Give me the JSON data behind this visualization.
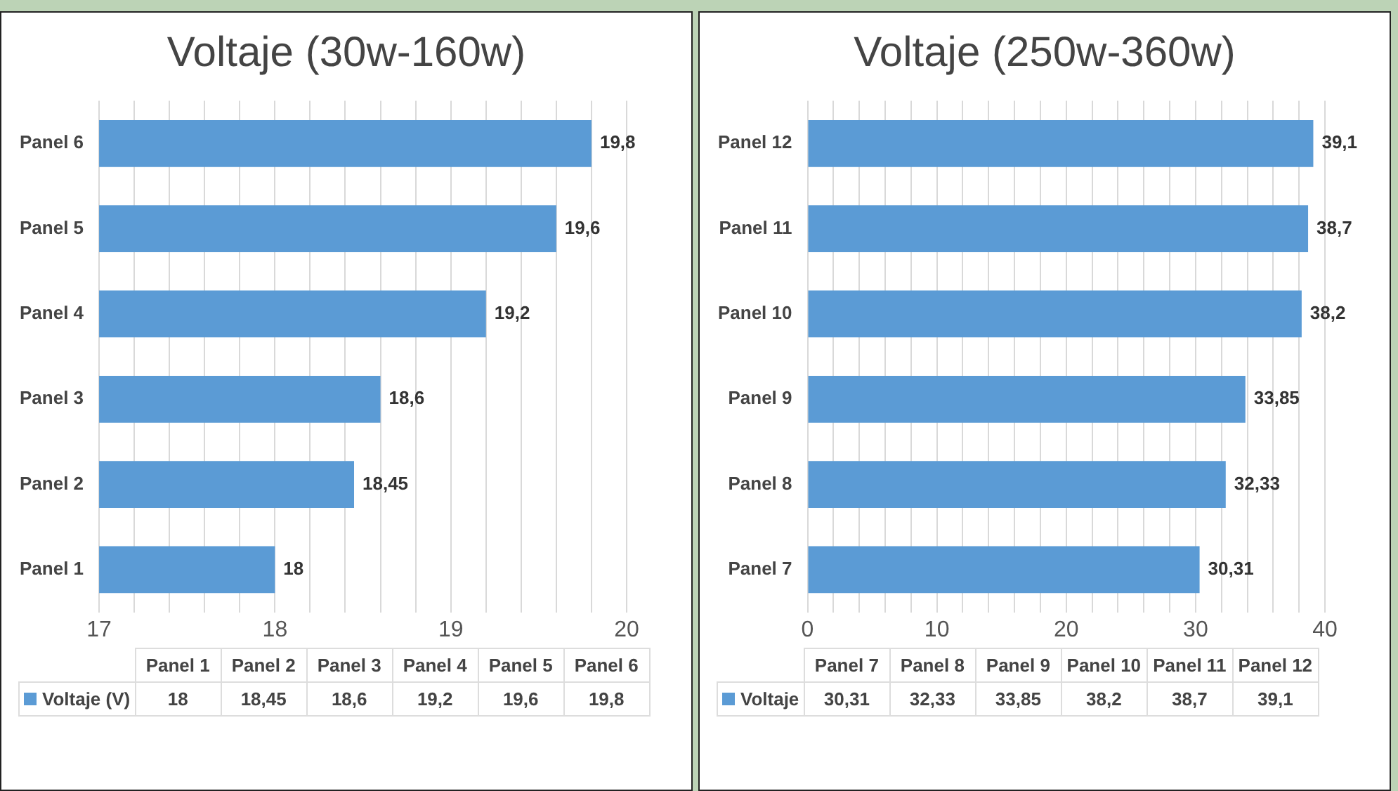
{
  "chart_data": [
    {
      "type": "bar",
      "orientation": "horizontal",
      "title": "Voltaje (30w-160w)",
      "categories": [
        "Panel 6",
        "Panel 5",
        "Panel 4",
        "Panel 3",
        "Panel 2",
        "Panel 1"
      ],
      "series": [
        {
          "name": "Voltaje (V)",
          "color": "#5b9bd5",
          "values": [
            19.8,
            19.6,
            19.2,
            18.6,
            18.45,
            18
          ],
          "value_labels": [
            "19,8",
            "19,6",
            "19,2",
            "18,6",
            "18,45",
            "18"
          ]
        }
      ],
      "xlim": [
        17,
        20
      ],
      "xticks": [
        17,
        {
          "value": 17.2,
          "label": null
        },
        {
          "value": 17.4,
          "label": null
        },
        {
          "value": 17.6,
          "label": null
        },
        {
          "value": 17.8,
          "label": null
        },
        18,
        {
          "value": 18.2,
          "label": null
        },
        {
          "value": 18.4,
          "label": null
        },
        {
          "value": 18.6,
          "label": null
        },
        {
          "value": 18.8,
          "label": null
        },
        19,
        {
          "value": 19.2,
          "label": null
        },
        {
          "value": 19.4,
          "label": null
        },
        {
          "value": 19.6,
          "label": null
        },
        {
          "value": 19.8,
          "label": null
        },
        20
      ],
      "grid": "x",
      "legend": "bottom"
    },
    {
      "type": "bar",
      "orientation": "horizontal",
      "title": "Voltaje (250w-360w)",
      "categories": [
        "Panel 12",
        "Panel 11",
        "Panel 10",
        "Panel 9",
        "Panel 8",
        "Panel 7"
      ],
      "series": [
        {
          "name": "Voltaje",
          "color": "#5b9bd5",
          "values": [
            39.1,
            38.7,
            38.2,
            33.85,
            32.33,
            30.31
          ],
          "value_labels": [
            "39,1",
            "38,7",
            "38,2",
            "33,85",
            "32,33",
            "30,31"
          ]
        }
      ],
      "xlim": [
        0,
        40
      ],
      "xticks": [
        0,
        {
          "value": 2,
          "label": null
        },
        {
          "value": 4,
          "label": null
        },
        {
          "value": 6,
          "label": null
        },
        {
          "value": 8,
          "label": null
        },
        10,
        {
          "value": 12,
          "label": null
        },
        {
          "value": 14,
          "label": null
        },
        {
          "value": 16,
          "label": null
        },
        {
          "value": 18,
          "label": null
        },
        20,
        {
          "value": 22,
          "label": null
        },
        {
          "value": 24,
          "label": null
        },
        {
          "value": 26,
          "label": null
        },
        {
          "value": 28,
          "label": null
        },
        30,
        {
          "value": 32,
          "label": null
        },
        {
          "value": 34,
          "label": null
        },
        {
          "value": 36,
          "label": null
        },
        {
          "value": 38,
          "label": null
        },
        40
      ],
      "grid": "x",
      "legend": "bottom"
    }
  ]
}
